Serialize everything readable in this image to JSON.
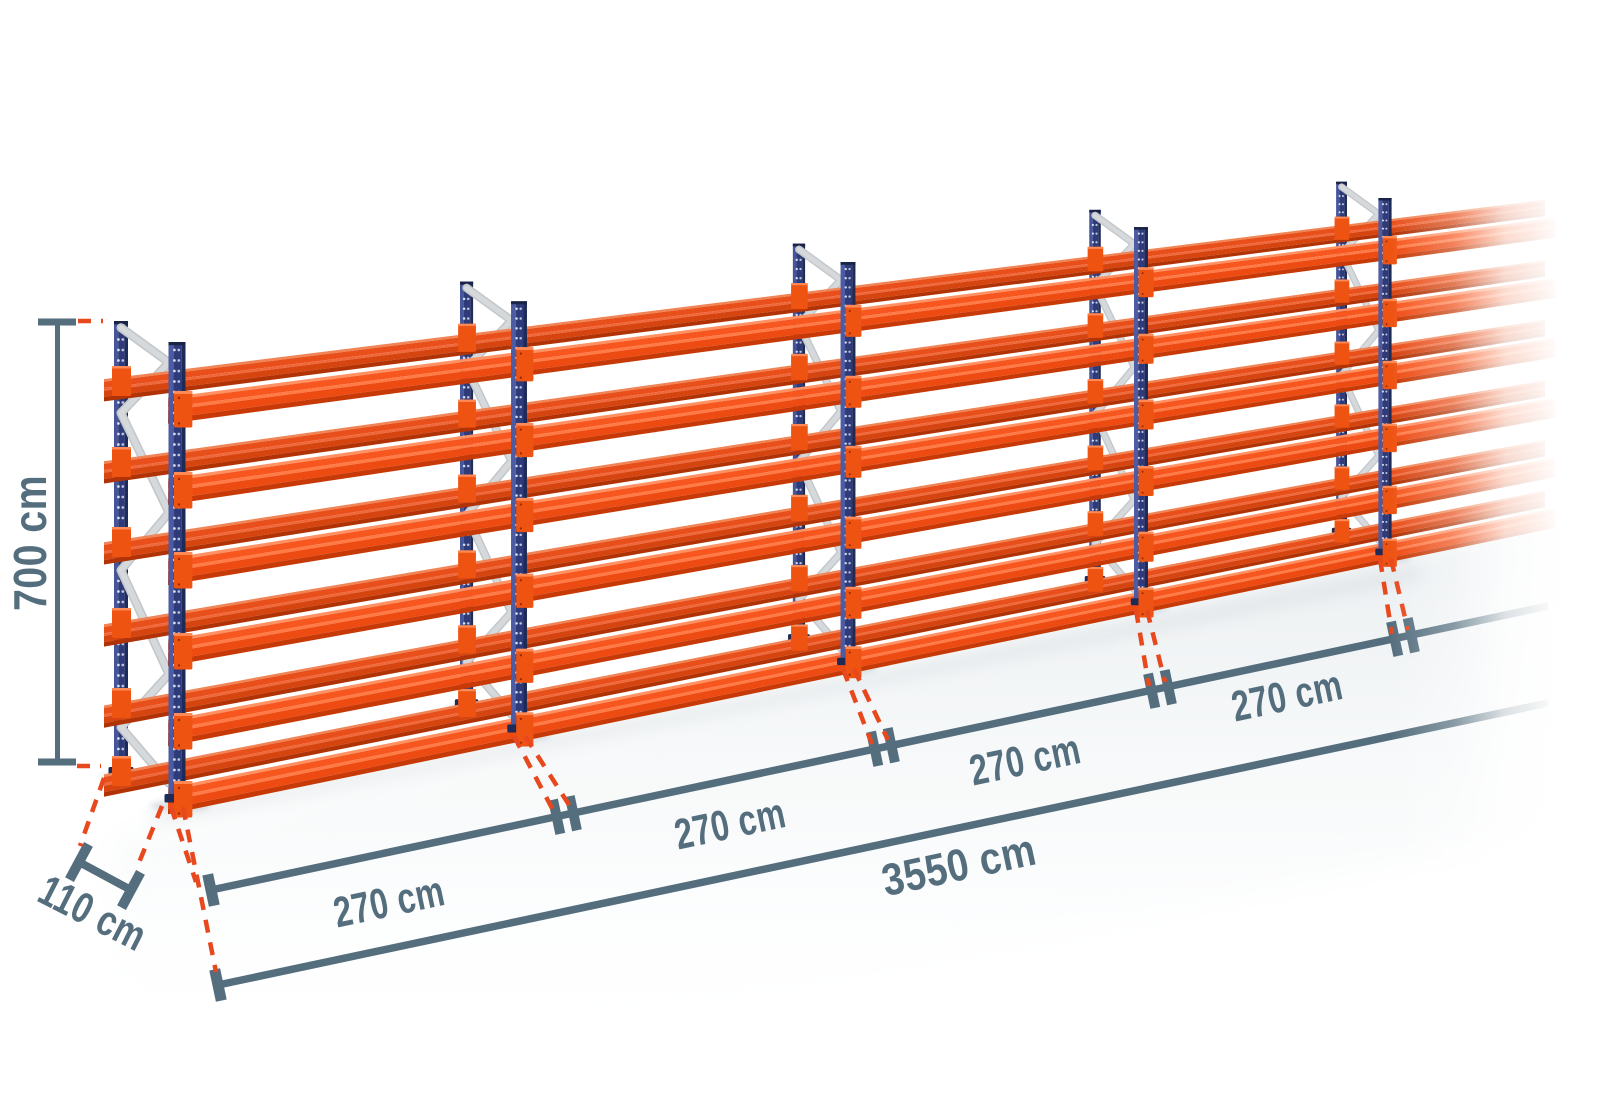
{
  "page": {
    "title": "Pallet racking dimension diagram"
  },
  "dimensions": {
    "height": {
      "label": "700 cm"
    },
    "depth": {
      "label": "110 cm"
    },
    "bays": [
      {
        "label": "270 cm"
      },
      {
        "label": "270 cm"
      },
      {
        "label": "270 cm"
      },
      {
        "label": "270 cm"
      }
    ],
    "total": {
      "label": "3550 cm"
    }
  },
  "structure": {
    "frames_visible": 5,
    "beam_levels": 6,
    "bays_measured": 4,
    "height_cm": 700,
    "depth_cm": 110,
    "bay_width_cm": 270,
    "total_length_cm": 3550,
    "unit": "cm"
  },
  "colors": {
    "dimension": "#556e7e",
    "dashed_line": "#e8481d",
    "beam_orange": "#f7571f",
    "beam_highlight": "#ff9163",
    "beam_shadow": "#c73a07",
    "connector_orange": "#ee5312",
    "upright_navy": "#2d3b7a",
    "upright_light": "#4c5ba2",
    "upright_dark": "#1e2a58",
    "brace_gray": "#d6d9db",
    "floor_tint": "#e6ebee",
    "background": "#ffffff"
  }
}
